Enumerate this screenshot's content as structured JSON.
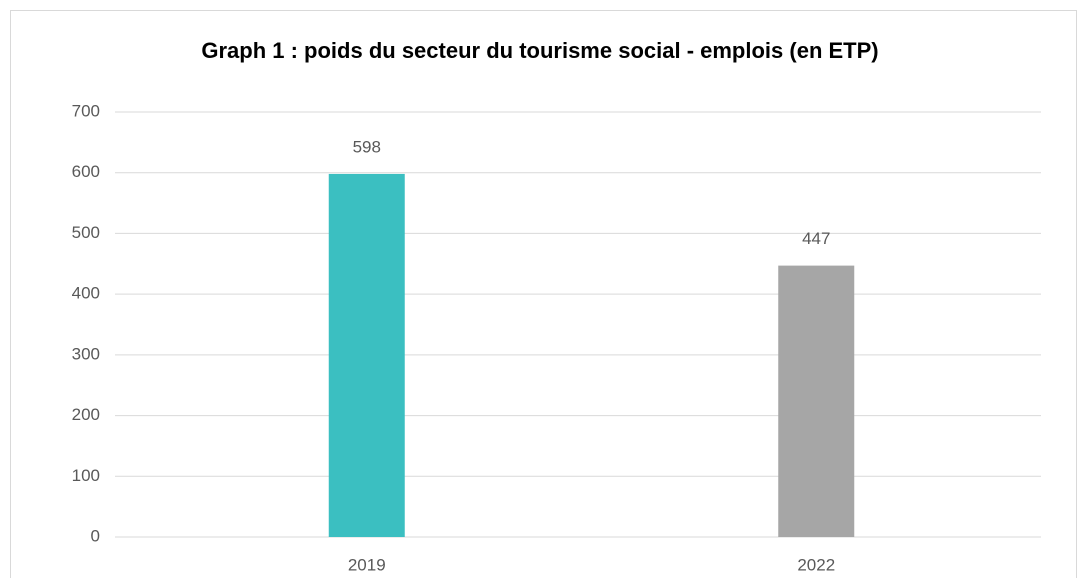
{
  "chart_data": {
    "type": "bar",
    "title": "Graph 1 : poids du secteur du tourisme social - emplois (en ETP)",
    "categories": [
      "2019",
      "2022"
    ],
    "values": [
      598,
      447
    ],
    "colors": [
      "#3bbfc1",
      "#a6a6a6"
    ],
    "ylim": [
      0,
      700
    ],
    "yticks": [
      0,
      100,
      200,
      300,
      400,
      500,
      600,
      700
    ],
    "grid": true
  }
}
